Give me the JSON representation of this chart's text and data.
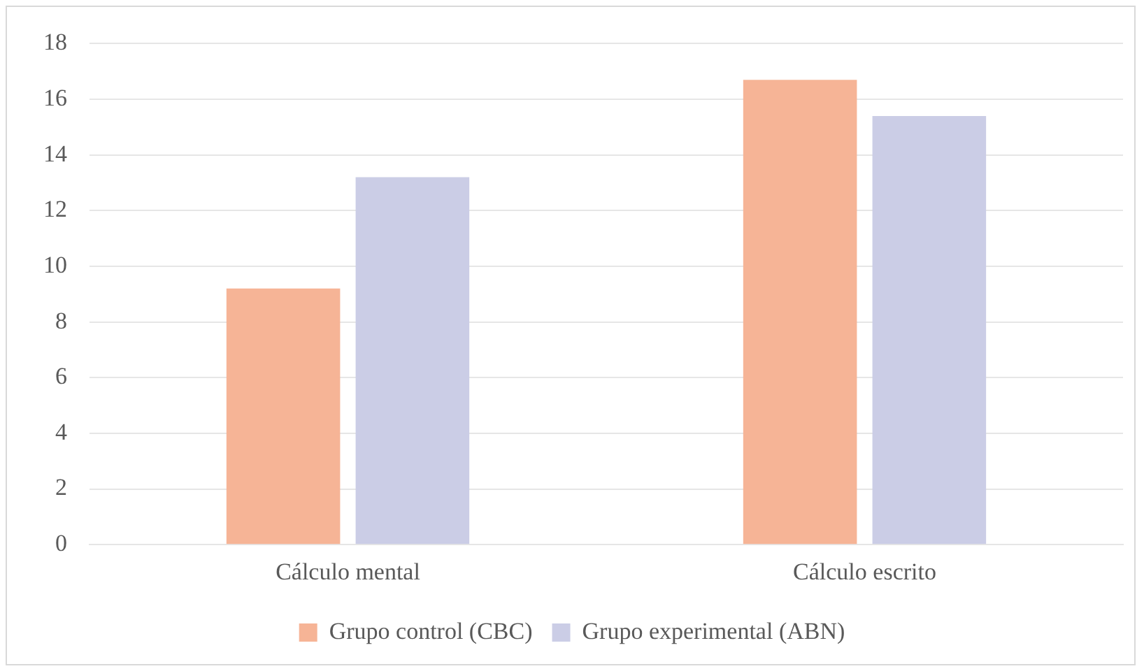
{
  "chart_data": {
    "type": "bar",
    "categories": [
      "Cálculo mental",
      "Cálculo escrito"
    ],
    "series": [
      {
        "name": "Grupo control (CBC)",
        "color": "#f6b496",
        "values": [
          9.2,
          16.7
        ]
      },
      {
        "name": "Grupo experimental (ABN)",
        "color": "#cbcde6",
        "values": [
          13.2,
          15.4
        ]
      }
    ],
    "ylim": [
      0,
      18
    ],
    "yticks": [
      0,
      2,
      4,
      6,
      8,
      10,
      12,
      14,
      16,
      18
    ],
    "grid": "y",
    "legend": "bottom"
  }
}
